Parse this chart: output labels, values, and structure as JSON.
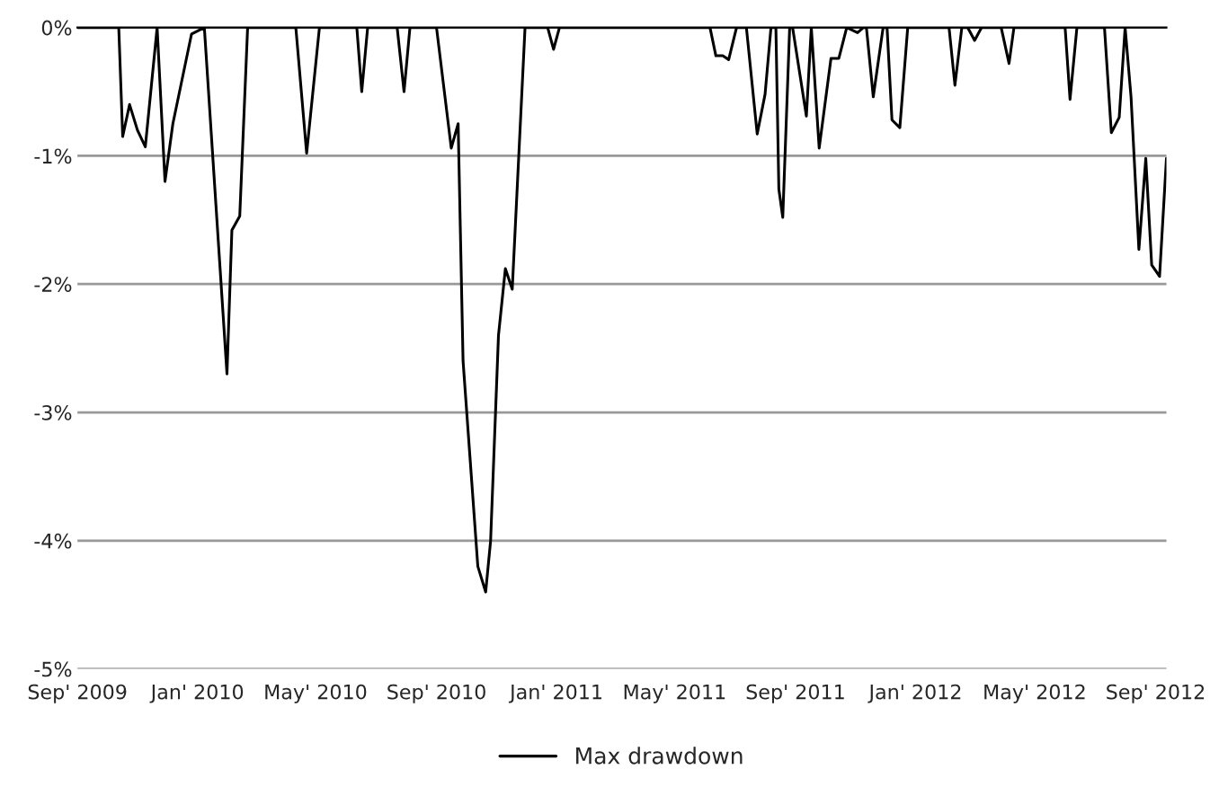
{
  "chart_data": {
    "type": "line",
    "x": [
      "2009-09-01",
      "2009-10-13",
      "2009-10-17",
      "2009-10-24",
      "2009-11-01",
      "2009-11-09",
      "2009-11-21",
      "2009-11-29",
      "2009-12-07",
      "2009-12-26",
      "2010-01-08",
      "2010-01-31",
      "2010-02-05",
      "2010-02-13",
      "2010-02-21",
      "2010-04-11",
      "2010-04-22",
      "2010-05-05",
      "2010-06-12",
      "2010-06-17",
      "2010-06-23",
      "2010-07-23",
      "2010-07-30",
      "2010-08-05",
      "2010-09-01",
      "2010-09-16",
      "2010-09-23",
      "2010-09-28",
      "2010-10-13",
      "2010-10-21",
      "2010-10-26",
      "2010-11-03",
      "2010-11-10",
      "2010-11-17",
      "2010-11-30",
      "2010-12-23",
      "2010-12-29",
      "2011-01-04",
      "2011-06-06",
      "2011-06-12",
      "2011-06-19",
      "2011-06-25",
      "2011-07-03",
      "2011-07-13",
      "2011-07-24",
      "2011-08-01",
      "2011-08-07",
      "2011-08-12",
      "2011-08-15",
      "2011-08-19",
      "2011-08-26",
      "2011-08-29",
      "2011-09-12",
      "2011-09-17",
      "2011-09-25",
      "2011-10-07",
      "2011-10-15",
      "2011-10-23",
      "2011-11-03",
      "2011-11-09",
      "2011-11-12",
      "2011-11-19",
      "2011-11-29",
      "2011-12-03",
      "2011-12-08",
      "2011-12-16",
      "2011-12-24",
      "2012-02-04",
      "2012-02-10",
      "2012-02-17",
      "2012-02-23",
      "2012-03-01",
      "2012-03-08",
      "2012-03-28",
      "2012-04-05",
      "2012-04-10",
      "2012-06-01",
      "2012-06-06",
      "2012-06-13",
      "2012-07-11",
      "2012-07-18",
      "2012-07-26",
      "2012-08-01",
      "2012-08-07",
      "2012-08-15",
      "2012-08-22",
      "2012-08-28",
      "2012-09-05",
      "2012-09-12"
    ],
    "series": [
      {
        "name": "Max drawdown",
        "color": "#000000",
        "values": [
          0,
          0,
          -0.85,
          -0.6,
          -0.8,
          -0.93,
          0,
          -1.2,
          -0.75,
          -0.05,
          0,
          -2.7,
          -1.58,
          -1.47,
          0,
          0,
          -0.98,
          0,
          0,
          -0.5,
          0,
          0,
          -0.5,
          0,
          0,
          -0.94,
          -0.75,
          -2.6,
          -4.2,
          -4.4,
          -4.0,
          -2.4,
          -1.88,
          -2.04,
          0,
          0,
          -0.17,
          0,
          0,
          -0.22,
          -0.22,
          -0.25,
          0,
          0,
          -0.83,
          -0.52,
          0,
          0,
          -1.26,
          -1.48,
          0,
          0,
          -0.69,
          0,
          -0.94,
          -0.24,
          -0.24,
          0,
          -0.04,
          0,
          0,
          -0.54,
          0,
          0,
          -0.72,
          -0.78,
          0,
          0,
          -0.45,
          0,
          0,
          -0.1,
          0,
          0,
          -0.28,
          0,
          0,
          -0.56,
          0,
          0,
          -0.82,
          -0.7,
          0,
          -0.54,
          -1.73,
          -1.02,
          -1.85,
          -1.94,
          -1.02
        ]
      }
    ],
    "xlim": [
      "2009-09-01",
      "2012-09-12"
    ],
    "xticks": [
      {
        "value": "2009-09-01",
        "label": "Sep' 2009"
      },
      {
        "value": "2010-01-01",
        "label": "Jan' 2010"
      },
      {
        "value": "2010-05-01",
        "label": "May' 2010"
      },
      {
        "value": "2010-09-01",
        "label": "Sep' 2010"
      },
      {
        "value": "2011-01-01",
        "label": "Jan' 2011"
      },
      {
        "value": "2011-05-01",
        "label": "May' 2011"
      },
      {
        "value": "2011-09-01",
        "label": "Sep' 2011"
      },
      {
        "value": "2012-01-01",
        "label": "Jan' 2012"
      },
      {
        "value": "2012-05-01",
        "label": "May' 2012"
      },
      {
        "value": "2012-09-01",
        "label": "Sep' 2012"
      }
    ],
    "ylim": [
      -5,
      0
    ],
    "yticks": [
      {
        "value": -5,
        "label": "-5%"
      },
      {
        "value": -4,
        "label": "-4%"
      },
      {
        "value": -3,
        "label": "-3%"
      },
      {
        "value": -2,
        "label": "-2%"
      },
      {
        "value": -1,
        "label": "-1%"
      },
      {
        "value": 0,
        "label": "0%"
      }
    ],
    "grid": "y",
    "legend": "bottom",
    "marker": "none",
    "line_style": "solid"
  }
}
